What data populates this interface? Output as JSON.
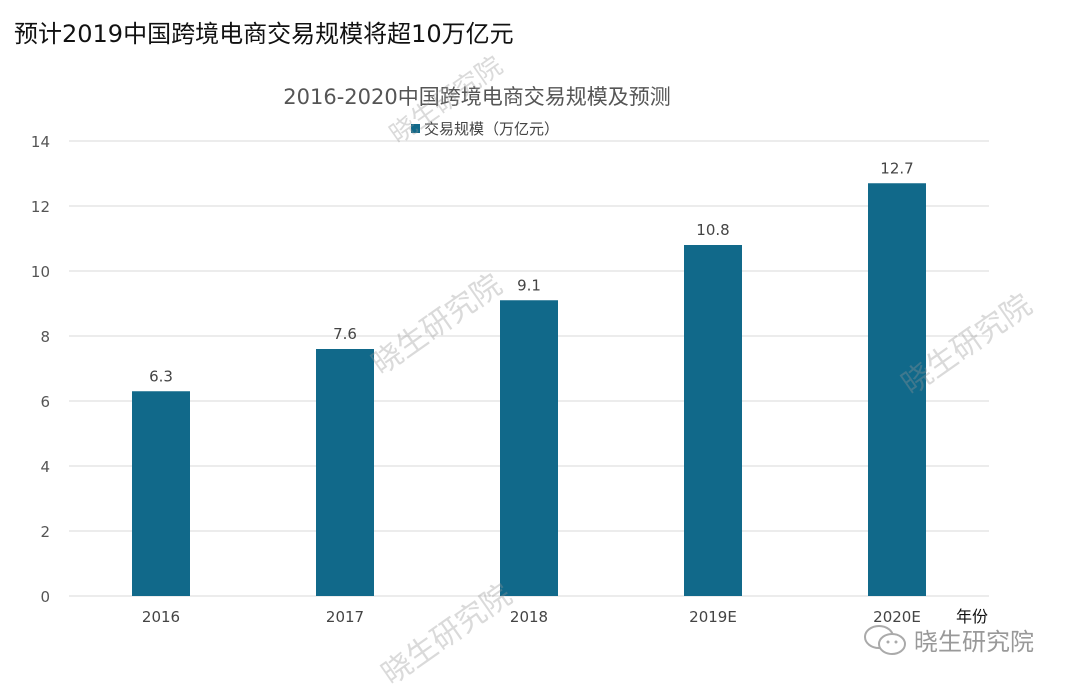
{
  "page_title": "预计2019中国跨境电商交易规模将超10万亿元",
  "watermark": "晓生研究院",
  "logo_text": "晓生研究院",
  "logo_icon": "wechat-icon",
  "chart_data": {
    "type": "bar",
    "title": "2016-2020中国跨境电商交易规模及预测",
    "categories": [
      "2016",
      "2017",
      "2018",
      "2019E",
      "2020E"
    ],
    "series": [
      {
        "name": "交易规模（万亿元）",
        "values": [
          6.3,
          7.6,
          9.1,
          10.8,
          12.7
        ]
      }
    ],
    "data_labels": [
      "6.3",
      "7.6",
      "9.1",
      "10.8",
      "12.7"
    ],
    "xlabel": "年份",
    "ylabel": "",
    "ylim": [
      0,
      14
    ],
    "yticks": [
      0,
      2,
      4,
      6,
      8,
      10,
      12,
      14
    ],
    "grid": true,
    "legend_placement": "top",
    "bar_color": "#11698a"
  }
}
